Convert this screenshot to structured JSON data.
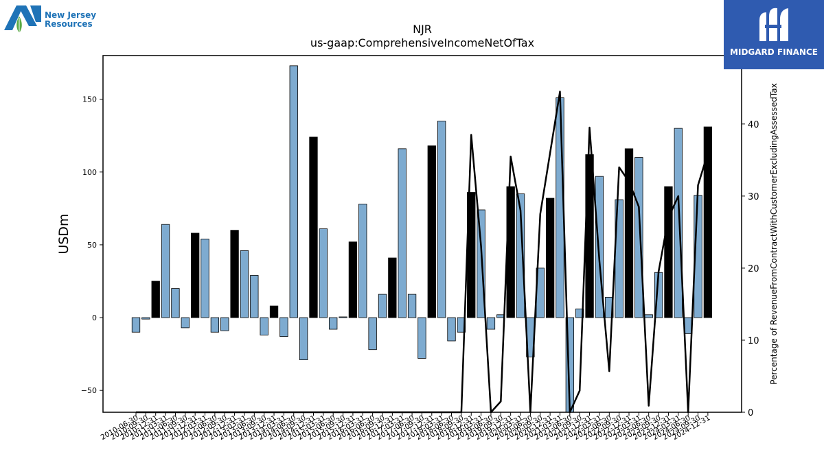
{
  "logos": {
    "left": {
      "line1": "New Jersey",
      "line2": "Resources",
      "color": "#1f73b7"
    },
    "right": {
      "text": "MIDGARD FINANCE",
      "bg": "#2f5bb0"
    }
  },
  "chart_data": {
    "type": "bar",
    "title": "NJR",
    "subtitle": "us-gaap:ComprehensiveIncomeNetOfTax",
    "ylabel": "USDm",
    "y2label": "Percentage of RevenueFromContractWithCustomerExcludingAssessedTax",
    "ylim": [
      -65,
      180
    ],
    "y2lim": [
      0,
      49.5
    ],
    "yticks": [
      -50,
      0,
      50,
      100,
      150
    ],
    "y2ticks": [
      0,
      10,
      20,
      30,
      40
    ],
    "colors": {
      "quarter": "#7eabd0",
      "annual": "#000000",
      "line": "#000000"
    },
    "categories": [
      "2010-06-30",
      "2010-09-30",
      "2010-12-31",
      "2011-03-31",
      "2011-06-30",
      "2011-09-30",
      "2011-12-31",
      "2012-03-31",
      "2012-06-30",
      "2012-09-30",
      "2012-12-31",
      "2013-03-31",
      "2013-06-30",
      "2013-09-30",
      "2013-12-31",
      "2014-03-31",
      "2014-06-30",
      "2014-09-30",
      "2014-12-31",
      "2015-03-31",
      "2015-06-30",
      "2015-09-30",
      "2015-12-31",
      "2016-03-31",
      "2016-06-30",
      "2016-09-30",
      "2016-12-31",
      "2017-03-31",
      "2017-06-30",
      "2017-09-30",
      "2017-12-31",
      "2018-03-31",
      "2018-06-30",
      "2018-09-30",
      "2018-12-31",
      "2019-03-31",
      "2019-06-30",
      "2019-09-30",
      "2019-12-31",
      "2020-03-31",
      "2020-06-30",
      "2020-09-30",
      "2020-12-31",
      "2021-03-31",
      "2021-06-30",
      "2021-09-30",
      "2021-12-31",
      "2022-03-31",
      "2022-06-30",
      "2022-09-30",
      "2022-12-31",
      "2023-03-31",
      "2023-06-30",
      "2023-09-30",
      "2023-12-31",
      "2024-03-31",
      "2024-06-30",
      "2024-09-30",
      "2024-12-31"
    ],
    "values": [
      -10,
      -1,
      25,
      64,
      20,
      -7,
      58,
      54,
      -10,
      -9,
      60,
      46,
      29,
      -12,
      8,
      -13,
      173,
      -29,
      124,
      61,
      -8,
      0.5,
      52,
      78,
      -22,
      16,
      41,
      116,
      16,
      -28,
      118,
      135,
      -16,
      -10,
      86,
      74,
      -8,
      2,
      90,
      85,
      -27,
      34,
      82,
      151,
      -65,
      6,
      112,
      97,
      14,
      81,
      116,
      110,
      2,
      31,
      90,
      130,
      -11,
      84,
      131
    ],
    "annual": [
      false,
      false,
      true,
      false,
      false,
      false,
      true,
      false,
      false,
      false,
      true,
      false,
      false,
      false,
      true,
      false,
      false,
      false,
      true,
      false,
      false,
      false,
      true,
      false,
      false,
      false,
      true,
      false,
      false,
      false,
      true,
      false,
      false,
      false,
      true,
      false,
      false,
      false,
      true,
      false,
      false,
      false,
      true,
      false,
      false,
      false,
      true,
      false,
      false,
      false,
      true,
      false,
      false,
      false,
      true,
      false,
      false,
      false,
      true
    ],
    "line_values": [
      0,
      0,
      0,
      0,
      0,
      0,
      0,
      0,
      0,
      0,
      0,
      0,
      0,
      0,
      0,
      0,
      0,
      0,
      0,
      0,
      0,
      0,
      0,
      0,
      0,
      0,
      0,
      0,
      0,
      0,
      0,
      0,
      0,
      0,
      38.5,
      23,
      0,
      1.5,
      35.5,
      28,
      0,
      27.5,
      36,
      44.5,
      0,
      3,
      39.5,
      21,
      5.7,
      34,
      32,
      28.5,
      0.9,
      19.5,
      27,
      30,
      0,
      31.5,
      36
    ]
  }
}
